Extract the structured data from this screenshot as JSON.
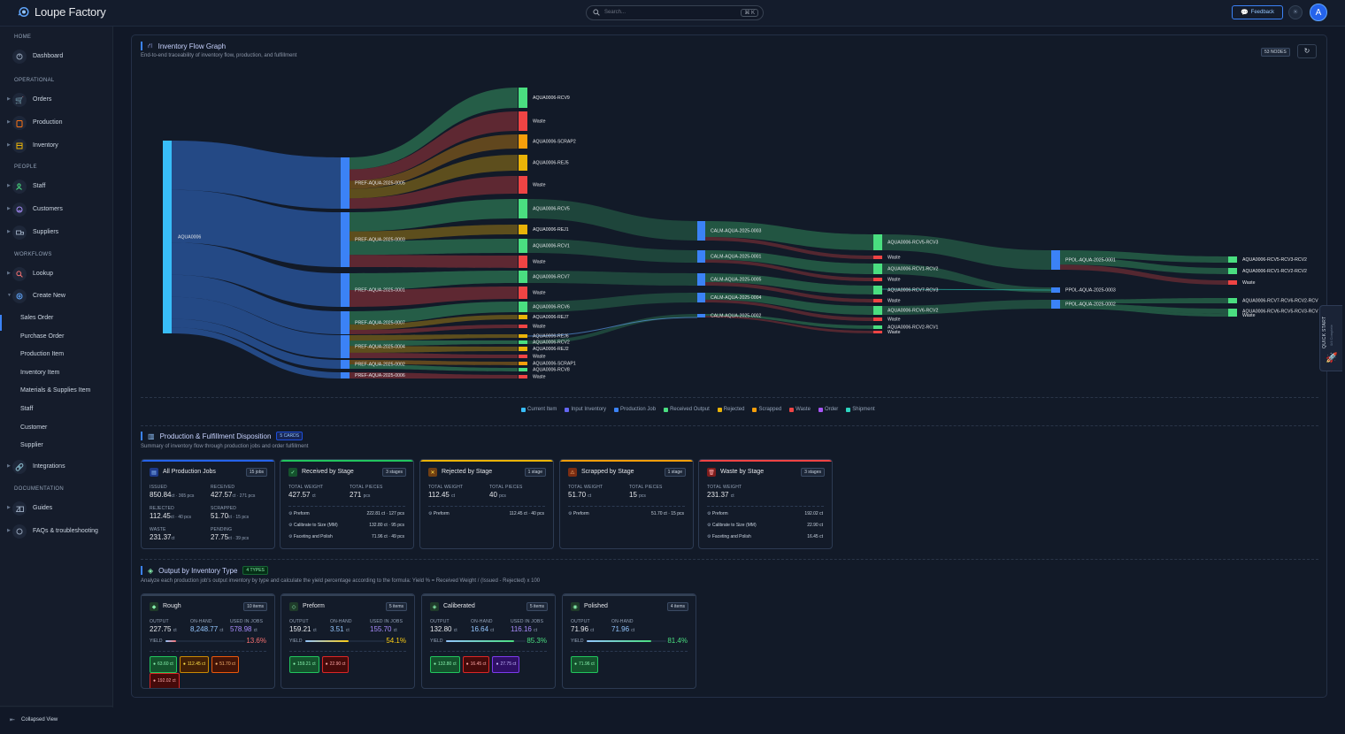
{
  "app": {
    "title": "Loupe Factory",
    "search_placeholder": "Search...",
    "search_shortcut": "⌘ K",
    "feedback_label": "Feedback",
    "avatar_initial": "A"
  },
  "sidebar": {
    "sections": {
      "home": "HOME",
      "operational": "OPERATIONAL",
      "people": "PEOPLE",
      "workflows": "WORKFLOWS",
      "documentation": "DOCUMENTATION"
    },
    "items": {
      "dashboard": "Dashboard",
      "orders": "Orders",
      "production": "Production",
      "inventory": "Inventory",
      "staff": "Staff",
      "customers": "Customers",
      "suppliers": "Suppliers",
      "lookup": "Lookup",
      "create_new": "Create New",
      "integrations": "Integrations",
      "guides": "Guides",
      "faqs": "FAQs & troubleshooting"
    },
    "create_new_sub": [
      "Sales Order",
      "Purchase Order",
      "Production Item",
      "Inventory Item",
      "Materials & Supplies Item",
      "Staff",
      "Customer",
      "Supplier"
    ],
    "collapse_label": "Collapsed View"
  },
  "flow": {
    "title": "Inventory Flow Graph",
    "description": "End-to-end traceability of inventory flow, production, and fulfillment",
    "nodes_badge": "53 NODES",
    "legend": [
      {
        "label": "Current Item",
        "color": "#38bdf8"
      },
      {
        "label": "Input Inventory",
        "color": "#6366f1"
      },
      {
        "label": "Production Job",
        "color": "#3b82f6"
      },
      {
        "label": "Received Output",
        "color": "#4ade80"
      },
      {
        "label": "Rejected",
        "color": "#eab308"
      },
      {
        "label": "Scrapped",
        "color": "#f59e0b"
      },
      {
        "label": "Waste",
        "color": "#ef4444"
      },
      {
        "label": "Order",
        "color": "#a855f7"
      },
      {
        "label": "Shipment",
        "color": "#2dd4bf"
      }
    ],
    "node_labels": {
      "root": "AQUA0006",
      "pref": [
        "PREF-AQUA-2025-0005",
        "PREF-AQUA-2025-0003",
        "PREF-AQUA-2025-0001",
        "PREF-AQUA-2025-0007",
        "PREF-AQUA-2025-0004",
        "PREF-AQUA-2025-0002",
        "PREF-AQUA-2025-0006"
      ],
      "out1": [
        "AQUA0006-RCV9",
        "Waste",
        "AQUA0006-SCRAP2",
        "AQUA0006-REJ5",
        "Waste",
        "AQUA0006-RCV5",
        "AQUA0006-REJ1",
        "AQUA0006-RCV1",
        "Waste",
        "AQUA0006-RCV7",
        "Waste",
        "AQUA0006-RCV6",
        "AQUA0006-REJ7",
        "Waste",
        "AQUA0006-REJ6",
        "AQUA0006-RCV2",
        "AQUA0006-REJ2",
        "Waste",
        "AQUA0006-SCRAP1",
        "AQUA0006-RCV8",
        "Waste"
      ],
      "calm": [
        "CALM-AQUA-2025-0003",
        "CALM-AQUA-2025-0001",
        "CALM-AQUA-2025-0005",
        "CALM-AQUA-2025-0004",
        "CALM-AQUA-2025-0002"
      ],
      "out2": [
        "AQUA0006-RCV5-RCV3",
        "Waste",
        "AQUA0006-RCV1-RCV2",
        "Waste",
        "AQUA0006-RCV7-RCV3",
        "Waste",
        "AQUA0006-RCV6-RCV2",
        "Waste",
        "AQUA0006-RCV2-RCV1",
        "Waste"
      ],
      "ppol": [
        "PPOL-AQUA-2025-0001",
        "PPOL-AQUA-2025-0003",
        "PPOL-AQUA-2025-0002"
      ],
      "out3": [
        "AQUA0006-RCV5-RCV3-RCV2",
        "AQUA0006-RCV1-RCV2-RCV2",
        "Waste",
        "AQUA0006-RCV7-RCV6-RCV2-RCV1",
        "AQUA0006-RCV6-RCV5-RCV3-RCV2",
        "Waste"
      ]
    }
  },
  "disposition": {
    "title": "Production & Fulfillment Disposition",
    "badge": "5 CARDS",
    "description": "Summary of inventory flow through production jobs and order fulfillment",
    "all_jobs": {
      "title": "All Production Jobs",
      "count": "15 jobs",
      "stats": [
        {
          "k": "ISSUED",
          "v": "850.84",
          "u": "ct · 365 pcs"
        },
        {
          "k": "RECEIVED",
          "v": "427.57",
          "u": "ct · 271 pcs"
        },
        {
          "k": "REJECTED",
          "v": "112.45",
          "u": "ct · 40 pcs"
        },
        {
          "k": "SCRAPPED",
          "v": "51.70",
          "u": "ct · 15 pcs"
        },
        {
          "k": "WASTE",
          "v": "231.37",
          "u": "ct"
        },
        {
          "k": "PENDING",
          "v": "27.75",
          "u": "ct · 39 pcs"
        }
      ]
    },
    "received": {
      "title": "Received by Stage",
      "count": "3 stages",
      "weight_k": "TOTAL WEIGHT",
      "weight": "427.57",
      "weight_u": "ct",
      "pieces_k": "TOTAL PIECES",
      "pieces": "271",
      "pieces_u": "pcs",
      "rows": [
        {
          "n": "Preform",
          "v": "222.81 ct · 127 pcs"
        },
        {
          "n": "Calibrate to Size (MM)",
          "v": "132.80 ct · 95 pcs"
        },
        {
          "n": "Faceting and Polish",
          "v": "71.96 ct · 49 pcs"
        }
      ]
    },
    "rejected": {
      "title": "Rejected by Stage",
      "count": "1 stage",
      "weight_k": "TOTAL WEIGHT",
      "weight": "112.45",
      "weight_u": "ct",
      "pieces_k": "TOTAL PIECES",
      "pieces": "40",
      "pieces_u": "pcs",
      "rows": [
        {
          "n": "Preform",
          "v": "112.45 ct · 40 pcs"
        }
      ]
    },
    "scrapped": {
      "title": "Scrapped by Stage",
      "count": "1 stage",
      "weight_k": "TOTAL WEIGHT",
      "weight": "51.70",
      "weight_u": "ct",
      "pieces_k": "TOTAL PIECES",
      "pieces": "15",
      "pieces_u": "pcs",
      "rows": [
        {
          "n": "Preform",
          "v": "51.70 ct · 15 pcs"
        }
      ]
    },
    "waste": {
      "title": "Waste by Stage",
      "count": "3 stages",
      "weight_k": "TOTAL WEIGHT",
      "weight": "231.37",
      "weight_u": "ct",
      "rows": [
        {
          "n": "Preform",
          "v": "192.02 ct"
        },
        {
          "n": "Calibrate to Size (MM)",
          "v": "22.90 ct"
        },
        {
          "n": "Faceting and Polish",
          "v": "16.45 ct"
        }
      ]
    }
  },
  "output": {
    "title": "Output by Inventory Type",
    "badge": "4 TYPES",
    "description": "Analyze each production job's output inventory by type and calculate the yield percentage according to the formula: Yield % = Received Weight / (Issued - Rejected) x 100",
    "yield_label": "YIELD",
    "keys": {
      "output": "OUTPUT",
      "onhand": "ON-HAND",
      "used": "USED IN JOBS"
    },
    "cards": [
      {
        "title": "Rough",
        "count": "10 items",
        "output": "227.75",
        "onhand": "8,248.77",
        "used": "578.98",
        "yield": "13.6%",
        "yield_frac": 0.136,
        "yield_color": "#f87171",
        "chips": [
          {
            "t": "63.60 ct",
            "c": "green"
          },
          {
            "t": "112.45 ct",
            "c": "yellow"
          },
          {
            "t": "51.70 ct",
            "c": "orange"
          },
          {
            "t": "192.02 ct",
            "c": "red"
          }
        ]
      },
      {
        "title": "Preform",
        "count": "5 items",
        "output": "159.21",
        "onhand": "3.51",
        "used": "155.70",
        "yield": "54.1%",
        "yield_frac": 0.541,
        "yield_color": "#facc15",
        "chips": [
          {
            "t": "159.21 ct",
            "c": "green"
          },
          {
            "t": "22.90 ct",
            "c": "red"
          }
        ]
      },
      {
        "title": "Caliberated",
        "count": "5 items",
        "output": "132.80",
        "onhand": "16.64",
        "used": "116.16",
        "yield": "85.3%",
        "yield_frac": 0.853,
        "yield_color": "#4ade80",
        "chips": [
          {
            "t": "132.80 ct",
            "c": "green"
          },
          {
            "t": "16.45 ct",
            "c": "red"
          },
          {
            "t": "27.75 ct",
            "c": "purple"
          }
        ]
      },
      {
        "title": "Polished",
        "count": "4 items",
        "output": "71.96",
        "onhand": "71.96",
        "used": "",
        "yield": "81.4%",
        "yield_frac": 0.814,
        "yield_color": "#4ade80",
        "chips": [
          {
            "t": "71.96 ct",
            "c": "green"
          }
        ]
      }
    ]
  },
  "quick_start": {
    "label": "QUICK START",
    "sub": "0/4 Complete"
  }
}
